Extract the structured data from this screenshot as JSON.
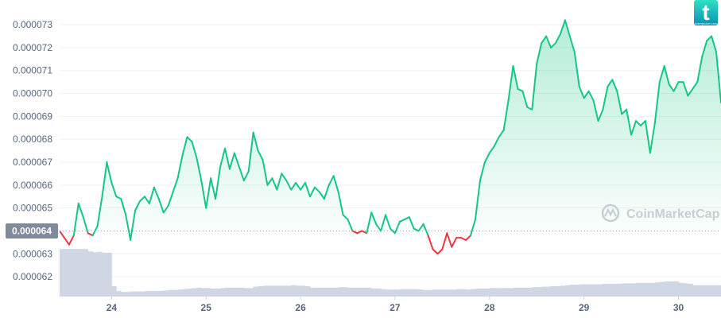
{
  "chart_data": {
    "type": "line",
    "title": "",
    "xlabel": "",
    "ylabel": "",
    "x_ticks": [
      "24",
      "25",
      "26",
      "27",
      "28",
      "29",
      "30"
    ],
    "y_ticks": [
      "0.000062",
      "0.000063",
      "0.000065",
      "0.000066",
      "0.000067",
      "0.000068",
      "0.000069",
      "0.000070",
      "0.000071",
      "0.000072",
      "0.000073"
    ],
    "xlim": [
      23.45,
      30.45
    ],
    "ylim": [
      6.117e-05,
      7.408e-05
    ],
    "grid": true,
    "reference": {
      "label": "0.000064",
      "value": 6.4e-05,
      "style": "dotted"
    },
    "colors": {
      "above": "#16c784",
      "below": "#ea3943",
      "fill_top": "#16c784",
      "volume": "#cfd6e4",
      "reference_label_bg": "#808a9d"
    },
    "series": [
      {
        "x": [
          23.45,
          23.5,
          23.55,
          23.6,
          23.65,
          23.7,
          23.75,
          23.8,
          23.85,
          23.9,
          23.95,
          24.0,
          24.05,
          24.1,
          24.15,
          24.2,
          24.25,
          24.3,
          24.35,
          24.4,
          24.45,
          24.5,
          24.55,
          24.6,
          24.65,
          24.7,
          24.75,
          24.8,
          24.85,
          24.9,
          24.95,
          25.0,
          25.05,
          25.1,
          25.15,
          25.2,
          25.25,
          25.3,
          25.35,
          25.4,
          25.45,
          25.5,
          25.55,
          25.6,
          25.65,
          25.7,
          25.75,
          25.8,
          25.85,
          25.9,
          25.95,
          26.0,
          26.05,
          26.1,
          26.15,
          26.2,
          26.25,
          26.3,
          26.35,
          26.4,
          26.45,
          26.5,
          26.55,
          26.6,
          26.65,
          26.7,
          26.75,
          26.8,
          26.85,
          26.9,
          26.95,
          27.0,
          27.05,
          27.1,
          27.15,
          27.2,
          27.25,
          27.3,
          27.35,
          27.4,
          27.45,
          27.5,
          27.55,
          27.6,
          27.65,
          27.7,
          27.75,
          27.8,
          27.85,
          27.9,
          27.95,
          28.0,
          28.05,
          28.1,
          28.15,
          28.2,
          28.25,
          28.3,
          28.35,
          28.4,
          28.45,
          28.5,
          28.55,
          28.6,
          28.65,
          28.7,
          28.75,
          28.8,
          28.85,
          28.9,
          28.95,
          29.0,
          29.05,
          29.1,
          29.15,
          29.2,
          29.25,
          29.3,
          29.35,
          29.4,
          29.45,
          29.5,
          29.55,
          29.6,
          29.65,
          29.7,
          29.75,
          29.8,
          29.85,
          29.9,
          29.95,
          30.0,
          30.05,
          30.1,
          30.15,
          30.2,
          30.25,
          30.3,
          30.35,
          30.4,
          30.45
        ],
        "values": [
          6.4e-05,
          6.37e-05,
          6.34e-05,
          6.38e-05,
          6.52e-05,
          6.46e-05,
          6.39e-05,
          6.38e-05,
          6.42e-05,
          6.55e-05,
          6.7e-05,
          6.61e-05,
          6.55e-05,
          6.54e-05,
          6.47e-05,
          6.36e-05,
          6.49e-05,
          6.53e-05,
          6.55e-05,
          6.52e-05,
          6.59e-05,
          6.54e-05,
          6.48e-05,
          6.51e-05,
          6.57e-05,
          6.63e-05,
          6.73e-05,
          6.81e-05,
          6.79e-05,
          6.72e-05,
          6.62e-05,
          6.5e-05,
          6.63e-05,
          6.54e-05,
          6.68e-05,
          6.76e-05,
          6.67e-05,
          6.74e-05,
          6.68e-05,
          6.62e-05,
          6.66e-05,
          6.83e-05,
          6.75e-05,
          6.71e-05,
          6.6e-05,
          6.63e-05,
          6.58e-05,
          6.65e-05,
          6.62e-05,
          6.58e-05,
          6.61e-05,
          6.58e-05,
          6.61e-05,
          6.55e-05,
          6.59e-05,
          6.57e-05,
          6.54e-05,
          6.6e-05,
          6.64e-05,
          6.57e-05,
          6.47e-05,
          6.45e-05,
          6.4e-05,
          6.39e-05,
          6.4e-05,
          6.39e-05,
          6.48e-05,
          6.43e-05,
          6.4e-05,
          6.47e-05,
          6.41e-05,
          6.39e-05,
          6.44e-05,
          6.45e-05,
          6.46e-05,
          6.41e-05,
          6.4e-05,
          6.43e-05,
          6.38e-05,
          6.32e-05,
          6.3e-05,
          6.32e-05,
          6.39e-05,
          6.33e-05,
          6.37e-05,
          6.37e-05,
          6.36e-05,
          6.38e-05,
          6.45e-05,
          6.62e-05,
          6.7e-05,
          6.74e-05,
          6.77e-05,
          6.81e-05,
          6.84e-05,
          6.97e-05,
          7.12e-05,
          7.02e-05,
          7.01e-05,
          6.94e-05,
          6.93e-05,
          7.13e-05,
          7.22e-05,
          7.25e-05,
          7.2e-05,
          7.22e-05,
          7.26e-05,
          7.32e-05,
          7.25e-05,
          7.18e-05,
          7.03e-05,
          6.98e-05,
          7.01e-05,
          6.97e-05,
          6.88e-05,
          6.93e-05,
          7.03e-05,
          7.06e-05,
          7.01e-05,
          6.91e-05,
          6.93e-05,
          6.82e-05,
          6.88e-05,
          6.86e-05,
          6.88e-05,
          6.74e-05,
          6.87e-05,
          7.05e-05,
          7.12e-05,
          7.04e-05,
          7.01e-05,
          7.05e-05,
          7.05e-05,
          6.99e-05,
          7.02e-05,
          7.05e-05,
          7.16e-05,
          7.23e-05,
          7.25e-05,
          7.18e-05,
          6.96e-05
        ]
      }
    ],
    "volume": {
      "x": [
        23.45,
        23.5,
        23.55,
        23.6,
        23.65,
        23.7,
        23.75,
        23.8,
        23.85,
        23.9,
        23.95,
        24.0,
        24.05,
        24.1,
        24.15,
        24.2,
        24.25,
        24.3,
        24.35,
        24.4,
        24.45,
        24.5,
        24.55,
        24.6,
        24.65,
        24.7,
        24.75,
        24.8,
        24.85,
        24.9,
        24.95,
        25.0,
        25.05,
        25.1,
        25.15,
        25.2,
        25.25,
        25.3,
        25.35,
        25.4,
        25.45,
        25.5,
        25.55,
        25.6,
        25.65,
        25.7,
        25.75,
        25.8,
        25.85,
        25.9,
        25.95,
        26.0,
        26.05,
        26.1,
        26.15,
        26.2,
        26.25,
        26.3,
        26.35,
        26.4,
        26.45,
        26.5,
        26.55,
        26.6,
        26.65,
        26.7,
        26.75,
        26.8,
        26.85,
        26.9,
        26.95,
        27.0,
        27.05,
        27.1,
        27.15,
        27.2,
        27.25,
        27.3,
        27.35,
        27.4,
        27.45,
        27.5,
        27.55,
        27.6,
        27.65,
        27.7,
        27.75,
        27.8,
        27.85,
        27.9,
        27.95,
        28.0,
        28.05,
        28.1,
        28.15,
        28.2,
        28.25,
        28.3,
        28.35,
        28.4,
        28.45,
        28.5,
        28.55,
        28.6,
        28.65,
        28.7,
        28.75,
        28.8,
        28.85,
        28.9,
        28.95,
        29.0,
        29.05,
        29.1,
        29.15,
        29.2,
        29.25,
        29.3,
        29.35,
        29.4,
        29.45,
        29.5,
        29.55,
        29.6,
        29.65,
        29.7,
        29.75,
        29.8,
        29.85,
        29.9,
        29.95,
        30.0,
        30.05,
        30.1,
        30.15,
        30.2,
        30.25,
        30.3,
        30.35,
        30.4,
        30.45
      ],
      "values": [
        0.98,
        0.98,
        0.98,
        0.98,
        0.98,
        0.98,
        0.93,
        0.91,
        0.92,
        0.9,
        0.9,
        0.2,
        0.1,
        0.08,
        0.08,
        0.09,
        0.09,
        0.09,
        0.1,
        0.1,
        0.1,
        0.1,
        0.11,
        0.12,
        0.12,
        0.13,
        0.14,
        0.15,
        0.16,
        0.17,
        0.16,
        0.16,
        0.15,
        0.15,
        0.16,
        0.17,
        0.17,
        0.17,
        0.17,
        0.16,
        0.16,
        0.19,
        0.2,
        0.21,
        0.21,
        0.21,
        0.21,
        0.21,
        0.21,
        0.22,
        0.21,
        0.21,
        0.2,
        0.17,
        0.17,
        0.17,
        0.17,
        0.17,
        0.17,
        0.18,
        0.18,
        0.17,
        0.17,
        0.17,
        0.17,
        0.17,
        0.15,
        0.15,
        0.14,
        0.13,
        0.13,
        0.13,
        0.14,
        0.14,
        0.14,
        0.14,
        0.13,
        0.12,
        0.12,
        0.13,
        0.13,
        0.13,
        0.13,
        0.13,
        0.14,
        0.14,
        0.13,
        0.14,
        0.15,
        0.15,
        0.15,
        0.16,
        0.16,
        0.16,
        0.16,
        0.16,
        0.17,
        0.17,
        0.17,
        0.17,
        0.18,
        0.18,
        0.19,
        0.19,
        0.2,
        0.2,
        0.21,
        0.22,
        0.23,
        0.23,
        0.24,
        0.24,
        0.24,
        0.24,
        0.24,
        0.25,
        0.25,
        0.25,
        0.25,
        0.26,
        0.26,
        0.26,
        0.27,
        0.27,
        0.27,
        0.27,
        0.28,
        0.29,
        0.3,
        0.3,
        0.3,
        0.27,
        0.26,
        0.25,
        0.22,
        0.22,
        0.22,
        0.22,
        0.22,
        0.22,
        0.23
      ]
    }
  },
  "watermark": {
    "text": "CoinMarketCap"
  },
  "badge": {
    "letter": "t",
    "subtext": "tickerjacker.com"
  }
}
